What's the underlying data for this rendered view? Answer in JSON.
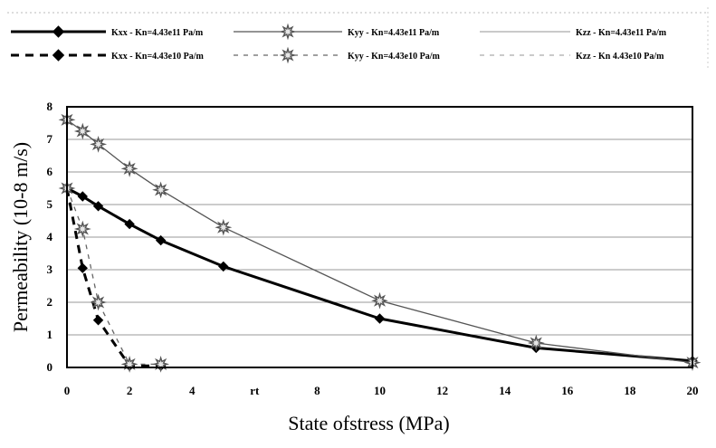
{
  "chart_data": {
    "type": "line",
    "title": "",
    "xlabel": "State ofstress (MPa)",
    "ylabel": "Permeability (10-8 m/s)",
    "xlim": [
      0,
      20
    ],
    "ylim": [
      0,
      8
    ],
    "x_ticks": [
      0,
      2,
      4,
      6,
      8,
      10,
      12,
      14,
      16,
      18,
      20
    ],
    "x_tick_labels": [
      "0",
      "2",
      "4",
      "rt",
      "8",
      "10",
      "12",
      "14",
      "16",
      "18",
      "20"
    ],
    "y_ticks": [
      0,
      1,
      2,
      3,
      4,
      5,
      6,
      7,
      8
    ],
    "y_tick_labels": [
      "0",
      "1",
      "2",
      "3",
      "4",
      "5",
      "6",
      "7",
      "8"
    ],
    "grid": "horizontal",
    "legend_position": "top",
    "series": [
      {
        "name": "Kxx - Kn=4.43e11 Pa/m",
        "style": "solid-thick",
        "marker": "diamond",
        "color": "#000000",
        "x": [
          0,
          0.5,
          1,
          2,
          3,
          5,
          10,
          15,
          20
        ],
        "y": [
          5.5,
          5.25,
          4.95,
          4.4,
          3.9,
          3.1,
          1.5,
          0.6,
          0.2
        ]
      },
      {
        "name": "Kyy - Kn=4.43e11 Pa/m",
        "style": "solid-thin",
        "marker": "star",
        "color": "#555555",
        "x": [
          0,
          0.5,
          1,
          2,
          3,
          5,
          10,
          15,
          20
        ],
        "y": [
          7.6,
          7.25,
          6.85,
          6.1,
          5.45,
          4.3,
          2.05,
          0.75,
          0.15
        ]
      },
      {
        "name": "Kzz - Kn=4.43e11 Pa/m",
        "style": "solid-thin",
        "marker": "none",
        "color": "#aaaaaa",
        "x": [],
        "y": []
      },
      {
        "name": "Kxx - Kn=4.43e10 Pa/m",
        "style": "dashed-thick",
        "marker": "diamond",
        "color": "#000000",
        "x": [
          0,
          0.5,
          1,
          2,
          3
        ],
        "y": [
          5.5,
          3.05,
          1.45,
          0.05,
          0.05
        ]
      },
      {
        "name": "Kyy - Kn=4.43e10 Pa/m",
        "style": "dashed-thin",
        "marker": "star",
        "color": "#666666",
        "x": [
          0,
          0.5,
          1,
          2,
          3
        ],
        "y": [
          5.5,
          4.25,
          2.0,
          0.1,
          0.1
        ]
      },
      {
        "name": "Kzz - Kn 4.43e10 Pa/m",
        "style": "dashed-thin",
        "marker": "none",
        "color": "#aaaaaa",
        "x": [],
        "y": []
      }
    ]
  }
}
